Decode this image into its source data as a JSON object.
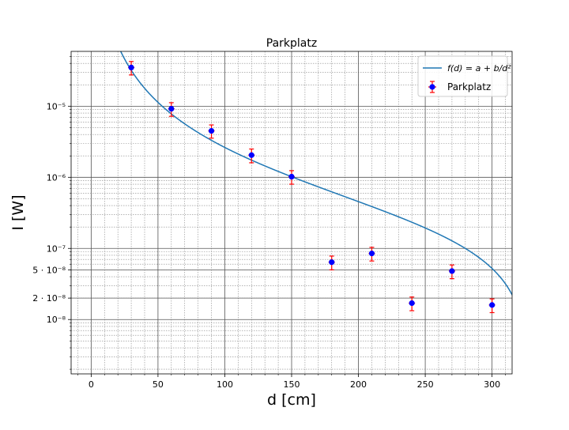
{
  "chart_data": {
    "type": "scatter",
    "title": "Parkplatz",
    "xlabel": "d [cm]",
    "ylabel": "I [W]",
    "x_scale": "linear",
    "y_scale": "log",
    "xlim": [
      -15,
      315
    ],
    "ylim": [
      1.72e-09,
      5.9e-05
    ],
    "grid": "major-and-minor",
    "legend_position": "top-right",
    "x_ticks": [
      0,
      50,
      100,
      150,
      200,
      250,
      300
    ],
    "x_tick_labels": [
      "0",
      "50",
      "100",
      "150",
      "200",
      "250",
      "300"
    ],
    "y_major_ticks": [
      1e-08,
      1e-07,
      1e-06,
      1e-05
    ],
    "y_major_tick_labels": [
      "10⁻⁸",
      "10⁻⁷",
      "10⁻⁶",
      "10⁻⁵"
    ],
    "y_extra_ticks": [
      2e-08,
      5e-08
    ],
    "y_extra_tick_labels": [
      "2 · 10⁻⁸",
      "5 · 10⁻⁸"
    ],
    "series": [
      {
        "name": "Parkplatz",
        "kind": "errorbar",
        "marker_color": "#0000ff",
        "errorbar_color": "#ff0000",
        "x": [
          30,
          60,
          90,
          120,
          150,
          180,
          210,
          240,
          270,
          300
        ],
        "y": [
          3.5e-05,
          9.2e-06,
          4.5e-06,
          2.05e-06,
          1.02e-06,
          6.4e-08,
          8.5e-08,
          1.7e-08,
          4.8e-08,
          1.6e-08
        ],
        "y_err": [
          7.5e-06,
          2e-06,
          9.5e-07,
          4.5e-07,
          2.2e-07,
          1.4e-08,
          1.85e-08,
          3.7e-09,
          1.05e-08,
          3.5e-09
        ]
      },
      {
        "name": "f(d) = a + b/d²",
        "kind": "fit-line",
        "color": "#1f77b4",
        "params": {
          "a": -2.7e-07,
          "b": 0.029
        }
      }
    ]
  }
}
